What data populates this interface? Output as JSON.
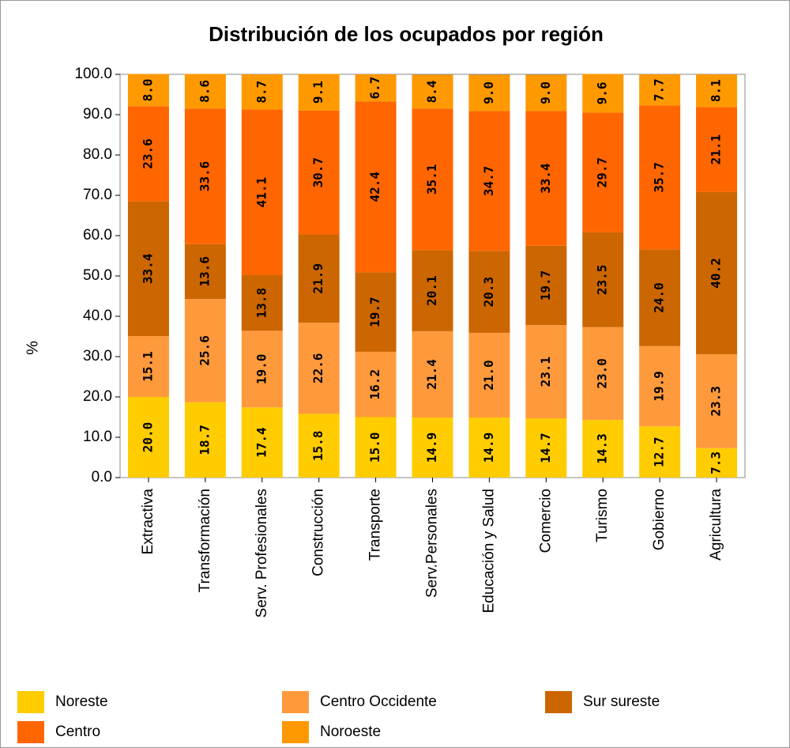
{
  "chart_data": {
    "type": "stacked_bar",
    "title": "Distribución de los ocupados por región",
    "y_label": "%",
    "categories": [
      "Extractiva",
      "Transformación",
      "Serv. Profesionales",
      "Construcción",
      "Transporte",
      "Serv.Personales",
      "Educación y Salud",
      "Comercio",
      "Turismo",
      "Gobierno",
      "Agricultura"
    ],
    "series": [
      {
        "name": "Noreste",
        "color": "#ffcc00",
        "values": [
          20.0,
          18.7,
          17.4,
          15.8,
          15.0,
          14.9,
          14.9,
          14.7,
          14.3,
          12.7,
          7.3
        ],
        "value_labels": [
          "20.0",
          "18.7",
          "17.4",
          "15.8",
          "15.0",
          "14.9",
          "14.9",
          "14.7",
          "14.3",
          "12.7",
          "7.3"
        ]
      },
      {
        "name": "Centro Occidente",
        "color": "#ff9a3c",
        "values": [
          15.1,
          25.6,
          19.0,
          22.6,
          16.2,
          21.4,
          21.0,
          23.1,
          23.0,
          19.9,
          23.3
        ],
        "value_labels": [
          "15.1",
          "25.6",
          "19.0",
          "22.6",
          "16.2",
          "21.4",
          "21.0",
          "23.1",
          "23.0",
          "19.9",
          "23.3"
        ]
      },
      {
        "name": "Sur sureste",
        "color": "#cc6600",
        "values": [
          33.4,
          13.6,
          13.8,
          21.9,
          19.7,
          20.1,
          20.3,
          19.7,
          23.5,
          24.0,
          40.2
        ],
        "value_labels": [
          "33.4",
          "13.6",
          "13.8",
          "21.9",
          "19.7",
          "20.1",
          "20.3",
          "19.7",
          "23.5",
          "24.0",
          "40.2"
        ]
      },
      {
        "name": "Centro",
        "color": "#ff6600",
        "values": [
          23.6,
          33.6,
          41.1,
          30.7,
          42.4,
          35.1,
          34.7,
          33.4,
          29.7,
          35.7,
          21.1
        ],
        "value_labels": [
          "23.6",
          "33.6",
          "41.1",
          "30.7",
          "42.4",
          "35.1",
          "34.7",
          "33.4",
          "29.7",
          "35.7",
          "21.1"
        ]
      },
      {
        "name": "Noroeste",
        "color": "#ff9900",
        "values": [
          8.0,
          8.6,
          8.7,
          9.1,
          6.7,
          8.4,
          9.0,
          9.0,
          9.6,
          7.7,
          8.1
        ],
        "value_labels": [
          "8.0",
          "8.6",
          "8.7",
          "9.1",
          "6.7",
          "8.4",
          "9.0",
          "9.0",
          "9.6",
          "7.7",
          "8.1"
        ]
      }
    ],
    "ylim": [
      0,
      100
    ],
    "yticks": [
      {
        "value": 0,
        "label": "0.0"
      },
      {
        "value": 10,
        "label": "10.0"
      },
      {
        "value": 20,
        "label": "20.0"
      },
      {
        "value": 30,
        "label": "30.0"
      },
      {
        "value": 40,
        "label": "40.0"
      },
      {
        "value": 50,
        "label": "50.0"
      },
      {
        "value": 60,
        "label": "60.0"
      },
      {
        "value": 70,
        "label": "70.0"
      },
      {
        "value": 80,
        "label": "80.0"
      },
      {
        "value": 90,
        "label": "90.0"
      },
      {
        "value": 100,
        "label": "100.0"
      }
    ],
    "legend": "bottom"
  }
}
